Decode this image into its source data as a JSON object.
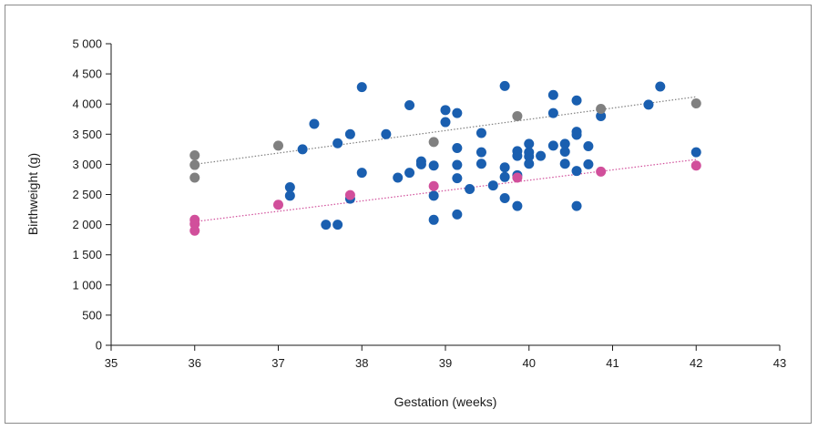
{
  "chart_data": {
    "type": "scatter",
    "title": "",
    "xlabel": "Gestation (weeks)",
    "ylabel": "Birthweight (g)",
    "xlim": [
      35,
      43
    ],
    "ylim": [
      0,
      5000
    ],
    "x_ticks": [
      35,
      36,
      37,
      38,
      39,
      40,
      41,
      42,
      43
    ],
    "x_tick_labels": [
      "35",
      "36",
      "37",
      "38",
      "39",
      "40",
      "41",
      "42",
      "43"
    ],
    "y_ticks": [
      0,
      500,
      1000,
      1500,
      2000,
      2500,
      3000,
      3500,
      4000,
      4500,
      5000
    ],
    "y_tick_labels": [
      "0",
      "500",
      "1 000",
      "1 500",
      "2 000",
      "2 500",
      "3 000",
      "3 500",
      "4 000",
      "4 500",
      "5 000"
    ],
    "grid": false,
    "legend": "none",
    "series": [
      {
        "color": "#1a5fb0",
        "points": [
          [
            37.14,
            2620
          ],
          [
            37.14,
            2480
          ],
          [
            37.29,
            3250
          ],
          [
            37.43,
            3670
          ],
          [
            37.57,
            2000
          ],
          [
            37.71,
            3350
          ],
          [
            37.71,
            2000
          ],
          [
            37.86,
            3500
          ],
          [
            37.86,
            2430
          ],
          [
            38.0,
            4280
          ],
          [
            38.0,
            2860
          ],
          [
            38.29,
            3500
          ],
          [
            38.43,
            2780
          ],
          [
            38.57,
            3980
          ],
          [
            38.57,
            2860
          ],
          [
            38.71,
            3050
          ],
          [
            38.71,
            3000
          ],
          [
            38.86,
            2980
          ],
          [
            38.86,
            2480
          ],
          [
            38.86,
            2080
          ],
          [
            39.0,
            3900
          ],
          [
            39.0,
            3700
          ],
          [
            39.14,
            3850
          ],
          [
            39.14,
            3270
          ],
          [
            39.14,
            2990
          ],
          [
            39.14,
            2770
          ],
          [
            39.14,
            2170
          ],
          [
            39.29,
            2590
          ],
          [
            39.43,
            3520
          ],
          [
            39.43,
            3200
          ],
          [
            39.43,
            3010
          ],
          [
            39.57,
            2650
          ],
          [
            39.71,
            4300
          ],
          [
            39.71,
            2950
          ],
          [
            39.71,
            2790
          ],
          [
            39.71,
            2440
          ],
          [
            39.86,
            3220
          ],
          [
            39.86,
            3140
          ],
          [
            39.86,
            2820
          ],
          [
            39.86,
            2310
          ],
          [
            40.0,
            3340
          ],
          [
            40.0,
            3200
          ],
          [
            40.0,
            3130
          ],
          [
            40.0,
            3010
          ],
          [
            40.14,
            3140
          ],
          [
            40.29,
            4150
          ],
          [
            40.29,
            3850
          ],
          [
            40.29,
            3310
          ],
          [
            40.43,
            3340
          ],
          [
            40.43,
            3210
          ],
          [
            40.43,
            3010
          ],
          [
            40.57,
            4060
          ],
          [
            40.57,
            3540
          ],
          [
            40.57,
            3490
          ],
          [
            40.57,
            2890
          ],
          [
            40.57,
            2310
          ],
          [
            40.71,
            3300
          ],
          [
            40.71,
            3000
          ],
          [
            40.86,
            3800
          ],
          [
            41.43,
            3990
          ],
          [
            41.57,
            4290
          ],
          [
            42.0,
            3200
          ]
        ]
      },
      {
        "color": "#808080",
        "points": [
          [
            36.0,
            3150
          ],
          [
            36.0,
            2990
          ],
          [
            36.0,
            2780
          ],
          [
            37.0,
            3310
          ],
          [
            38.86,
            3370
          ],
          [
            39.86,
            3800
          ],
          [
            40.86,
            3920
          ],
          [
            42.0,
            4010
          ]
        ],
        "trendline": [
          [
            36.0,
            3000
          ],
          [
            42.0,
            4120
          ]
        ]
      },
      {
        "color": "#d14f9b",
        "points": [
          [
            36.0,
            2080
          ],
          [
            36.0,
            2010
          ],
          [
            36.0,
            1900
          ],
          [
            37.0,
            2330
          ],
          [
            37.86,
            2490
          ],
          [
            38.86,
            2640
          ],
          [
            39.86,
            2780
          ],
          [
            40.86,
            2880
          ],
          [
            42.0,
            2980
          ]
        ],
        "trendline": [
          [
            36.0,
            2050
          ],
          [
            42.0,
            3080
          ]
        ]
      }
    ]
  }
}
